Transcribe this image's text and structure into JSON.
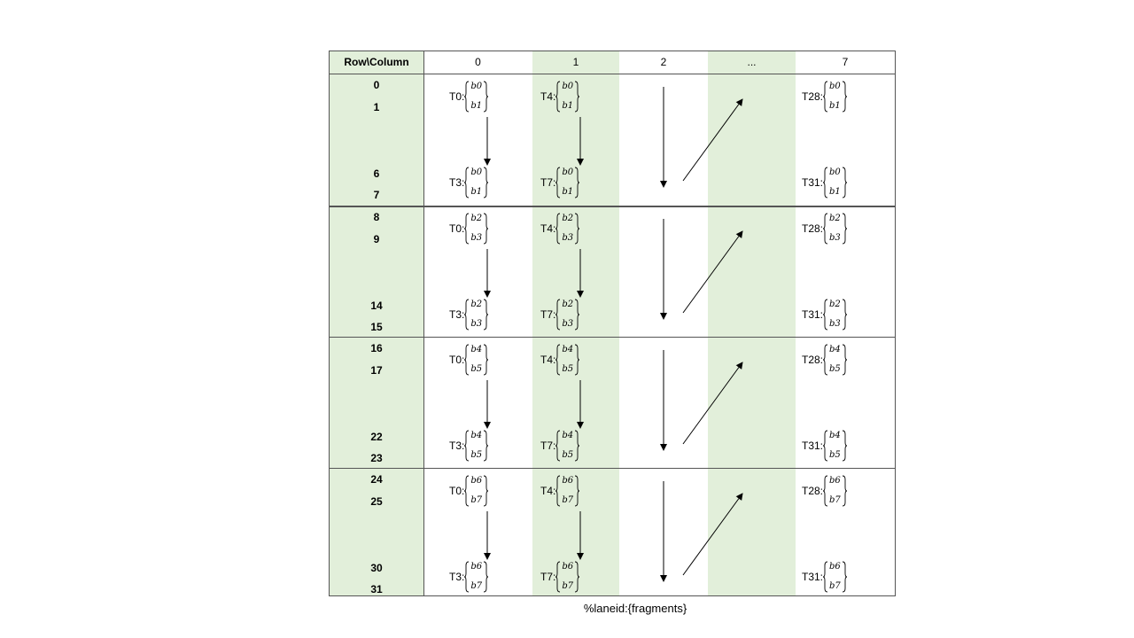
{
  "header": {
    "corner": "Row\\Column",
    "columns": [
      "0",
      "1",
      "2",
      "...",
      "7"
    ]
  },
  "blocks": [
    {
      "rows": [
        "0",
        "1",
        "6",
        "7"
      ],
      "fragments": [
        "b0",
        "b1"
      ]
    },
    {
      "rows": [
        "8",
        "9",
        "14",
        "15"
      ],
      "fragments": [
        "b2",
        "b3"
      ]
    },
    {
      "rows": [
        "16",
        "17",
        "22",
        "23"
      ],
      "fragments": [
        "b4",
        "b5"
      ]
    },
    {
      "rows": [
        "24",
        "25",
        "30",
        "31"
      ],
      "fragments": [
        "b6",
        "b7"
      ]
    }
  ],
  "top_threads": [
    "T0:",
    "T4:",
    "T28:"
  ],
  "bottom_threads": [
    "T3:",
    "T7:",
    "T31:"
  ],
  "caption": "%laneid:{fragments}",
  "colors": {
    "highlight": "#e2efda",
    "border": "#555555"
  }
}
